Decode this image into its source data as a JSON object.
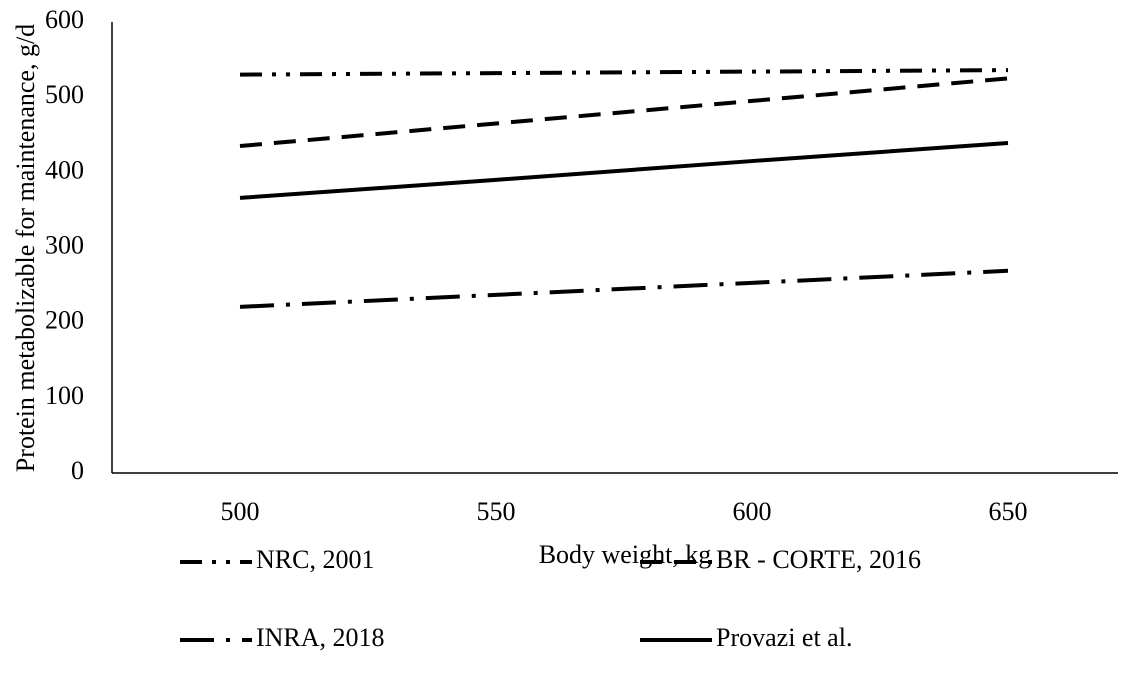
{
  "chart_data": {
    "type": "line",
    "x_label": "Body weight, kg",
    "y_label": "Protein metabolizable for maintenance, g/d",
    "categories": [
      "500",
      "550",
      "600",
      "650"
    ],
    "ylim": [
      0,
      600
    ],
    "yticks": [
      0,
      100,
      200,
      300,
      400,
      500,
      600
    ],
    "grid": false,
    "series": [
      {
        "name": "NRC, 2001",
        "color": "#000000",
        "dash": "dash-dot-dot",
        "values": [
          530,
          532,
          534,
          536
        ]
      },
      {
        "name": "BR - CORTE, 2016",
        "color": "#000000",
        "dash": "dash",
        "values": [
          435,
          465,
          495,
          525
        ]
      },
      {
        "name": "INRA, 2018",
        "color": "#000000",
        "dash": "long-dash-dot",
        "values": [
          221,
          237,
          253,
          269
        ]
      },
      {
        "name": "Provazi et al.",
        "color": "#000000",
        "dash": "solid",
        "values": [
          366,
          390,
          415,
          439
        ]
      }
    ]
  }
}
